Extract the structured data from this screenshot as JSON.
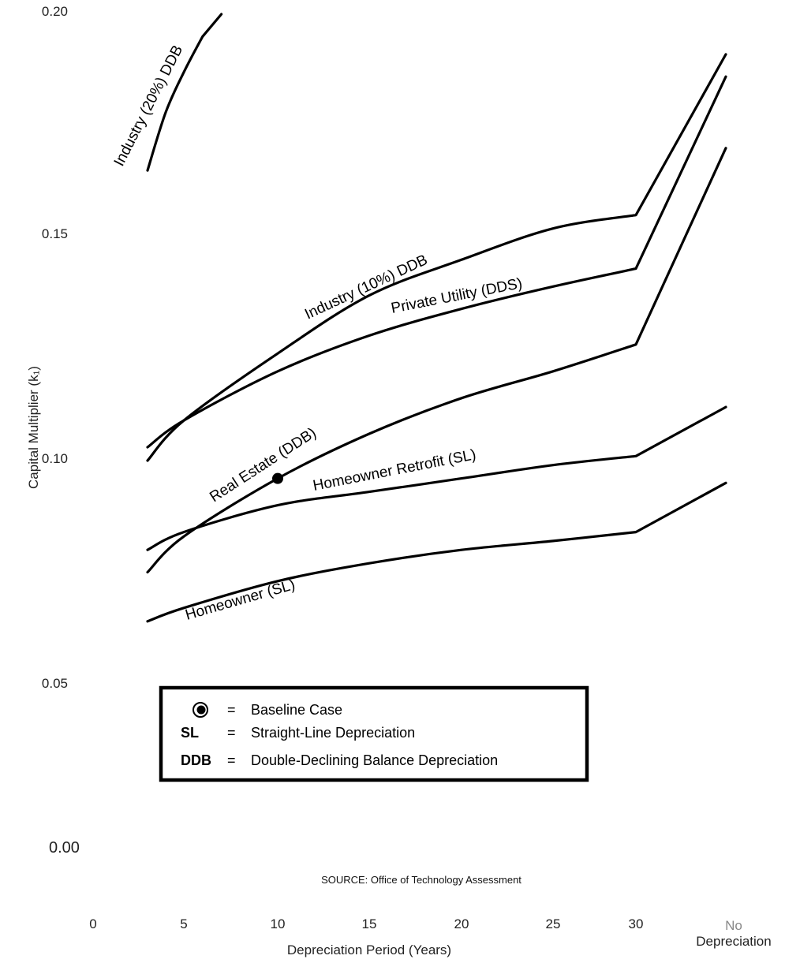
{
  "chart_data": {
    "type": "line",
    "title": "",
    "xlabel": "Depreciation Period (Years)",
    "ylabel": "Capital Multiplier (k₁)",
    "x_ticks": [
      "0",
      "5",
      "10",
      "15",
      "20",
      "25",
      "30",
      "No Depreciation"
    ],
    "y_ticks": [
      "0.00",
      "0.05",
      "0.10",
      "0.15",
      "0.20"
    ],
    "ylim": [
      0,
      0.2
    ],
    "grid": false,
    "series": [
      {
        "name": "Industry (20%) DDB",
        "points": [
          [
            3,
            0.165
          ],
          [
            4,
            0.178
          ],
          [
            5,
            0.187
          ],
          [
            6,
            0.195
          ],
          [
            7,
            0.2
          ]
        ]
      },
      {
        "name": "Industry (10%) DDB",
        "points": [
          [
            3,
            0.1
          ],
          [
            5,
            0.109
          ],
          [
            10,
            0.124
          ],
          [
            15,
            0.137
          ],
          [
            20,
            0.145
          ],
          [
            25,
            0.152
          ],
          [
            30,
            0.155
          ],
          [
            "No Depreciation",
            0.191
          ]
        ]
      },
      {
        "name": "Private Utility (DDS)",
        "points": [
          [
            3,
            0.103
          ],
          [
            5,
            0.109
          ],
          [
            10,
            0.12
          ],
          [
            15,
            0.128
          ],
          [
            20,
            0.134
          ],
          [
            25,
            0.139
          ],
          [
            30,
            0.143
          ],
          [
            "No Depreciation",
            0.186
          ]
        ]
      },
      {
        "name": "Real Estate (DDB)",
        "points": [
          [
            3,
            0.075
          ],
          [
            5,
            0.083
          ],
          [
            10,
            0.096
          ],
          [
            15,
            0.106
          ],
          [
            20,
            0.114
          ],
          [
            25,
            0.12
          ],
          [
            30,
            0.126
          ],
          [
            "No Depreciation",
            0.17
          ]
        ]
      },
      {
        "name": "Homeowner Retrofit (SL)",
        "points": [
          [
            3,
            0.08
          ],
          [
            5,
            0.084
          ],
          [
            10,
            0.09
          ],
          [
            15,
            0.093
          ],
          [
            20,
            0.096
          ],
          [
            25,
            0.099
          ],
          [
            30,
            0.101
          ],
          [
            "No Depreciation",
            0.112
          ]
        ]
      },
      {
        "name": "Homeowner (SL)",
        "points": [
          [
            3,
            0.064
          ],
          [
            5,
            0.067
          ],
          [
            10,
            0.073
          ],
          [
            15,
            0.077
          ],
          [
            20,
            0.08
          ],
          [
            25,
            0.082
          ],
          [
            30,
            0.084
          ],
          [
            "No Depreciation",
            0.095
          ]
        ]
      }
    ],
    "baseline_point": {
      "x": 10,
      "y": 0.096
    },
    "legend": {
      "placement": "lower-center",
      "entries": [
        {
          "key": "",
          "symbol": "baseline-dot-icon",
          "sep": "=",
          "text": "Baseline Case"
        },
        {
          "key": "SL",
          "sep": "=",
          "text": "Straight-Line Depreciation"
        },
        {
          "key": "DDB",
          "sep": "=",
          "text": "Double-Declining Balance Depreciation"
        }
      ]
    },
    "source": "SOURCE: Office of Technology Assessment"
  }
}
